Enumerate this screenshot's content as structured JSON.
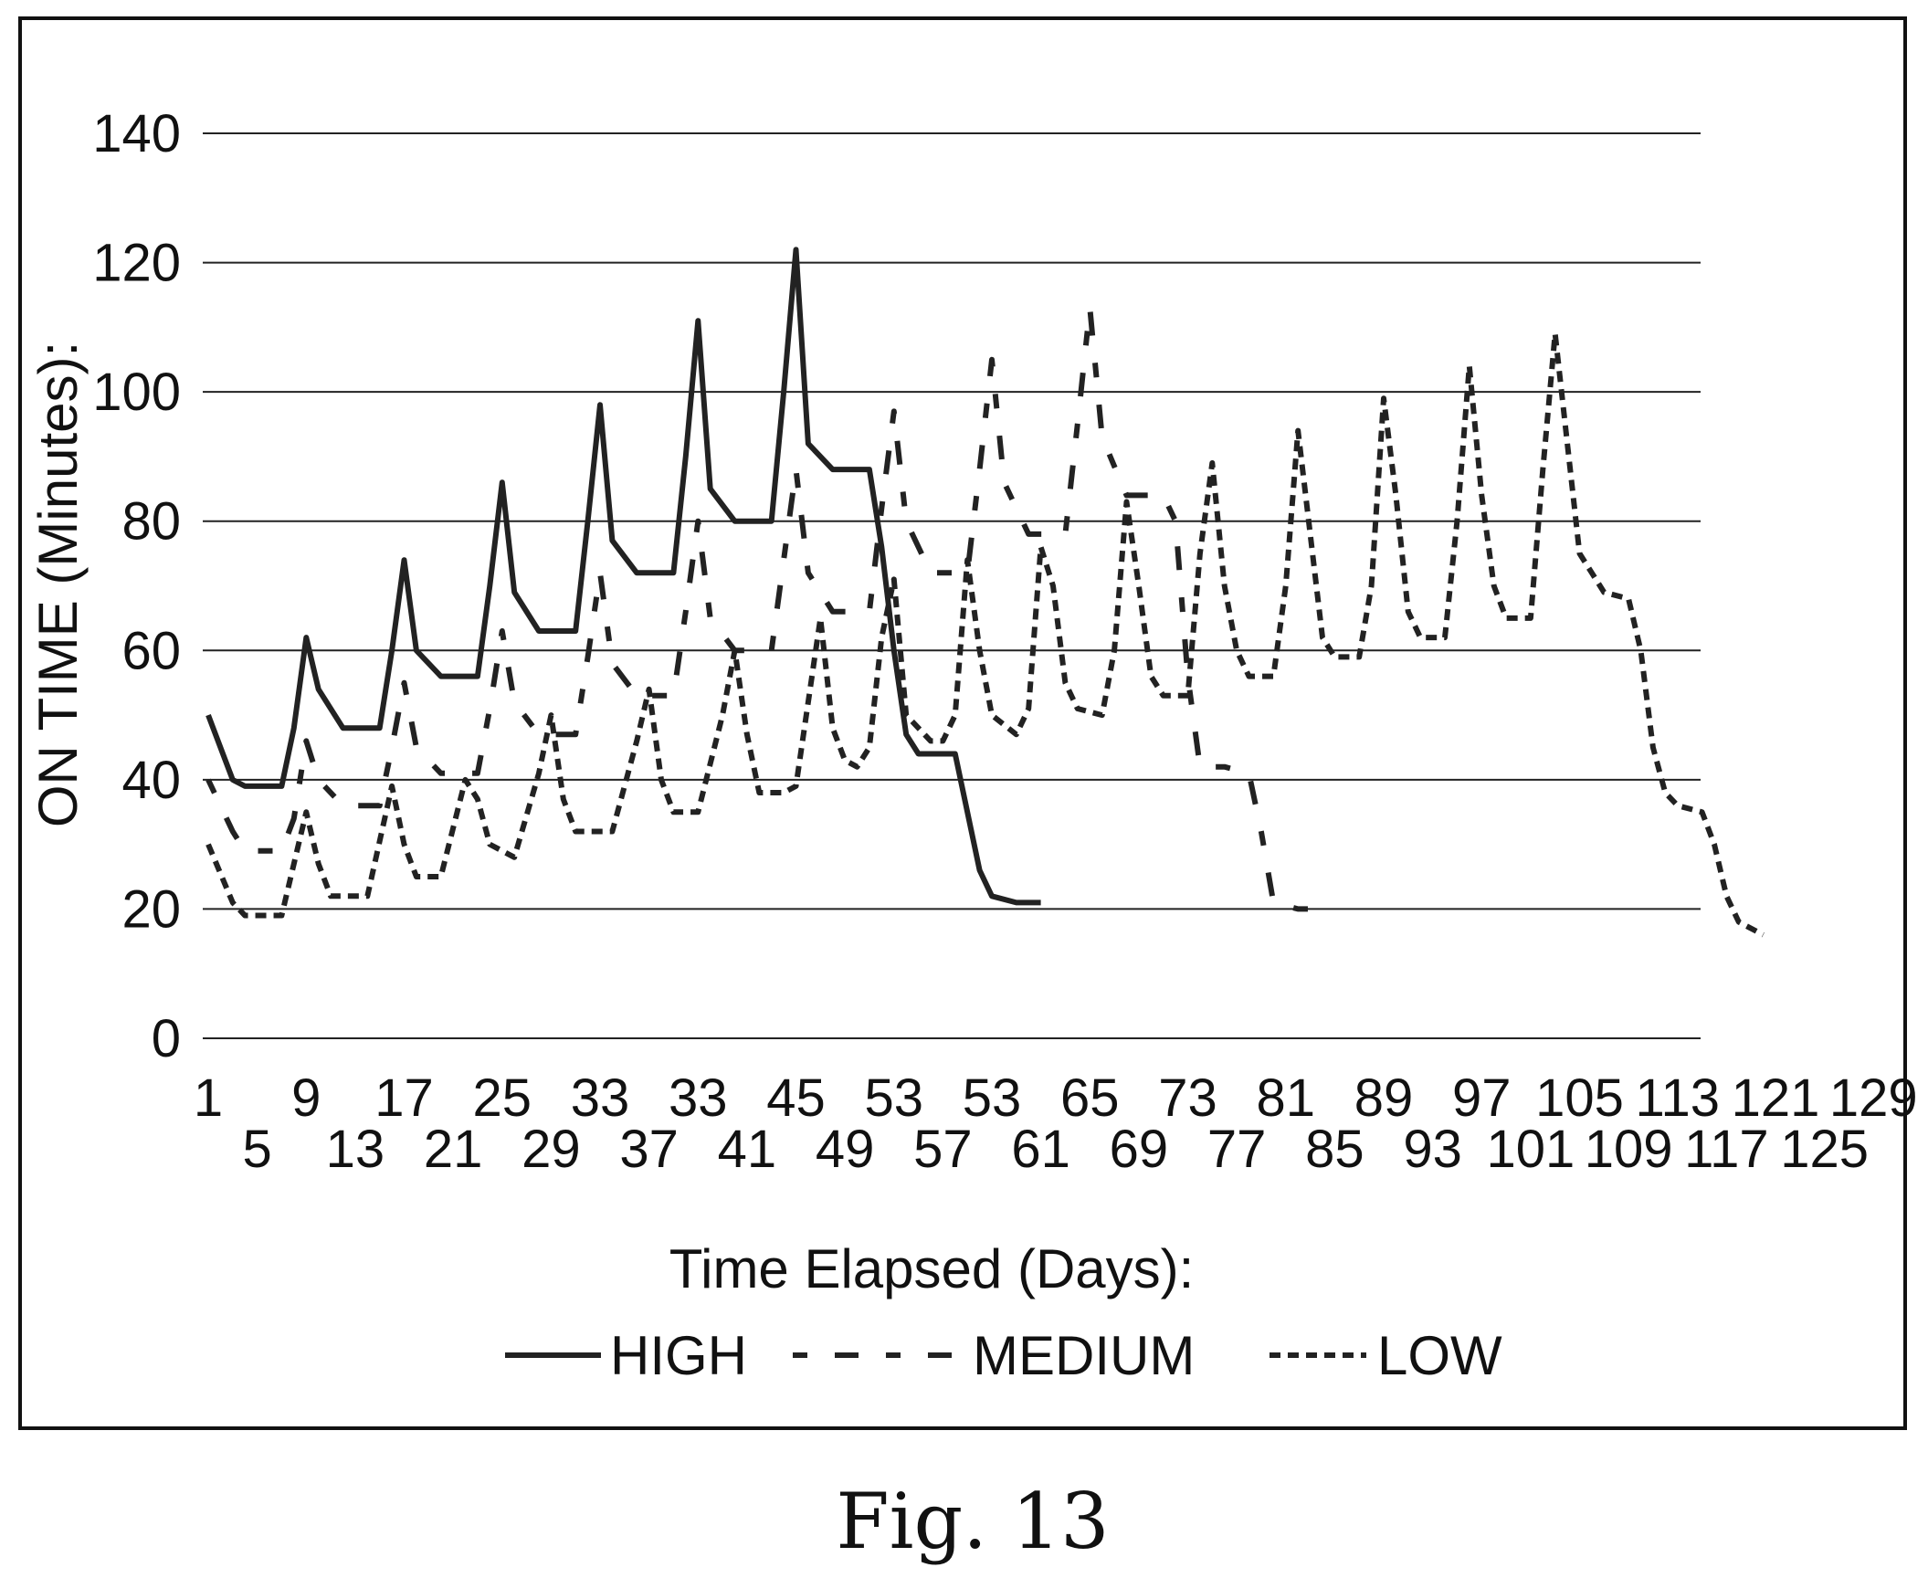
{
  "caption": "Fig. 13",
  "chart_data": {
    "type": "line",
    "xlabel": "Time Elapsed (Days):",
    "ylabel": "ON TIME (Minutes):",
    "ylim": [
      0,
      140
    ],
    "yticks": [
      "0",
      "20",
      "40",
      "60",
      "80",
      "100",
      "120",
      "140"
    ],
    "xticks_row1": [
      "1",
      "9",
      "17",
      "25",
      "33",
      "33",
      "45",
      "53",
      "53",
      "65",
      "73",
      "81",
      "89",
      "97",
      "105",
      "113",
      "121",
      "129"
    ],
    "xticks_row2": [
      "5",
      "13",
      "21",
      "29",
      "37",
      "41",
      "49",
      "57",
      "61",
      "69",
      "77",
      "85",
      "93",
      "101",
      "109",
      "117",
      "125"
    ],
    "xlim": [
      1,
      129
    ],
    "grid": true,
    "legend_position": "bottom",
    "series": [
      {
        "name": "HIGH",
        "style": "solid",
        "points": [
          [
            1,
            50
          ],
          [
            3,
            40
          ],
          [
            4,
            39
          ],
          [
            7,
            39
          ],
          [
            8,
            48
          ],
          [
            9,
            62
          ],
          [
            10,
            54
          ],
          [
            12,
            48
          ],
          [
            15,
            48
          ],
          [
            16,
            60
          ],
          [
            17,
            74
          ],
          [
            18,
            60
          ],
          [
            20,
            56
          ],
          [
            23,
            56
          ],
          [
            24,
            70
          ],
          [
            25,
            86
          ],
          [
            26,
            69
          ],
          [
            28,
            63
          ],
          [
            31,
            63
          ],
          [
            32,
            80
          ],
          [
            33,
            98
          ],
          [
            34,
            77
          ],
          [
            36,
            72
          ],
          [
            39,
            72
          ],
          [
            40,
            90
          ],
          [
            41,
            111
          ],
          [
            42,
            85
          ],
          [
            44,
            80
          ],
          [
            47,
            80
          ],
          [
            48,
            100
          ],
          [
            49,
            122
          ],
          [
            50,
            92
          ],
          [
            52,
            88
          ],
          [
            55,
            88
          ],
          [
            56,
            76
          ],
          [
            57,
            60
          ],
          [
            58,
            47
          ],
          [
            59,
            44
          ],
          [
            62,
            44
          ],
          [
            63,
            35
          ],
          [
            64,
            26
          ],
          [
            65,
            22
          ],
          [
            67,
            21
          ],
          [
            69,
            21
          ]
        ]
      },
      {
        "name": "MEDIUM",
        "style": "dashed",
        "points": [
          [
            1,
            40
          ],
          [
            3,
            32
          ],
          [
            4,
            29
          ],
          [
            7,
            29
          ],
          [
            8,
            34
          ],
          [
            9,
            46
          ],
          [
            10,
            40
          ],
          [
            12,
            36
          ],
          [
            15,
            36
          ],
          [
            16,
            45
          ],
          [
            17,
            55
          ],
          [
            18,
            45
          ],
          [
            20,
            41
          ],
          [
            23,
            41
          ],
          [
            24,
            51
          ],
          [
            25,
            63
          ],
          [
            26,
            52
          ],
          [
            28,
            47
          ],
          [
            31,
            47
          ],
          [
            32,
            59
          ],
          [
            33,
            72
          ],
          [
            34,
            58
          ],
          [
            36,
            53
          ],
          [
            39,
            53
          ],
          [
            40,
            66
          ],
          [
            41,
            80
          ],
          [
            42,
            65
          ],
          [
            44,
            60
          ],
          [
            47,
            60
          ],
          [
            48,
            74
          ],
          [
            49,
            88
          ],
          [
            50,
            72
          ],
          [
            52,
            66
          ],
          [
            55,
            66
          ],
          [
            56,
            82
          ],
          [
            57,
            97
          ],
          [
            58,
            80
          ],
          [
            60,
            72
          ],
          [
            63,
            72
          ],
          [
            64,
            88
          ],
          [
            65,
            105
          ],
          [
            66,
            86
          ],
          [
            68,
            78
          ],
          [
            71,
            78
          ],
          [
            72,
            95
          ],
          [
            73,
            113
          ],
          [
            74,
            93
          ],
          [
            76,
            84
          ],
          [
            79,
            84
          ],
          [
            80,
            80
          ],
          [
            81,
            56
          ],
          [
            82,
            42
          ],
          [
            84,
            42
          ],
          [
            86,
            41
          ],
          [
            87,
            32
          ],
          [
            88,
            21
          ],
          [
            90,
            20
          ],
          [
            93,
            20
          ]
        ]
      },
      {
        "name": "LOW",
        "style": "dotted",
        "points": [
          [
            1,
            30
          ],
          [
            3,
            21
          ],
          [
            4,
            19
          ],
          [
            7,
            19
          ],
          [
            8,
            27
          ],
          [
            9,
            35
          ],
          [
            10,
            27
          ],
          [
            11,
            22
          ],
          [
            14,
            22
          ],
          [
            16,
            39
          ],
          [
            17,
            30
          ],
          [
            18,
            25
          ],
          [
            20,
            25
          ],
          [
            22,
            40
          ],
          [
            23,
            37
          ],
          [
            24,
            30
          ],
          [
            26,
            28
          ],
          [
            28,
            41
          ],
          [
            29,
            50
          ],
          [
            30,
            37
          ],
          [
            31,
            32
          ],
          [
            34,
            32
          ],
          [
            36,
            46
          ],
          [
            37,
            54
          ],
          [
            38,
            40
          ],
          [
            39,
            35
          ],
          [
            41,
            35
          ],
          [
            43,
            50
          ],
          [
            44,
            60
          ],
          [
            45,
            47
          ],
          [
            46,
            38
          ],
          [
            48,
            38
          ],
          [
            49,
            39
          ],
          [
            50,
            52
          ],
          [
            51,
            65
          ],
          [
            52,
            48
          ],
          [
            53,
            43
          ],
          [
            54,
            42
          ],
          [
            55,
            45
          ],
          [
            56,
            62
          ],
          [
            57,
            71
          ],
          [
            58,
            50
          ],
          [
            60,
            46
          ],
          [
            61,
            46
          ],
          [
            62,
            50
          ],
          [
            63,
            74
          ],
          [
            64,
            60
          ],
          [
            65,
            50
          ],
          [
            67,
            47
          ],
          [
            68,
            51
          ],
          [
            69,
            76
          ],
          [
            70,
            70
          ],
          [
            71,
            55
          ],
          [
            72,
            51
          ],
          [
            74,
            50
          ],
          [
            75,
            60
          ],
          [
            76,
            83
          ],
          [
            77,
            70
          ],
          [
            78,
            56
          ],
          [
            79,
            53
          ],
          [
            81,
            53
          ],
          [
            82,
            75
          ],
          [
            83,
            89
          ],
          [
            84,
            70
          ],
          [
            85,
            60
          ],
          [
            86,
            56
          ],
          [
            88,
            56
          ],
          [
            89,
            70
          ],
          [
            90,
            94
          ],
          [
            91,
            78
          ],
          [
            92,
            62
          ],
          [
            93,
            59
          ],
          [
            95,
            59
          ],
          [
            96,
            70
          ],
          [
            97,
            99
          ],
          [
            98,
            84
          ],
          [
            99,
            66
          ],
          [
            100,
            62
          ],
          [
            102,
            62
          ],
          [
            103,
            80
          ],
          [
            104,
            104
          ],
          [
            105,
            84
          ],
          [
            106,
            70
          ],
          [
            107,
            65
          ],
          [
            109,
            65
          ],
          [
            110,
            88
          ],
          [
            111,
            109
          ],
          [
            112,
            92
          ],
          [
            113,
            75
          ],
          [
            114,
            72
          ],
          [
            115,
            69
          ],
          [
            117,
            68
          ],
          [
            118,
            60
          ],
          [
            119,
            45
          ],
          [
            120,
            38
          ],
          [
            121,
            36
          ],
          [
            123,
            35
          ],
          [
            124,
            30
          ],
          [
            125,
            22
          ],
          [
            126,
            18
          ],
          [
            128,
            16
          ]
        ]
      }
    ]
  }
}
